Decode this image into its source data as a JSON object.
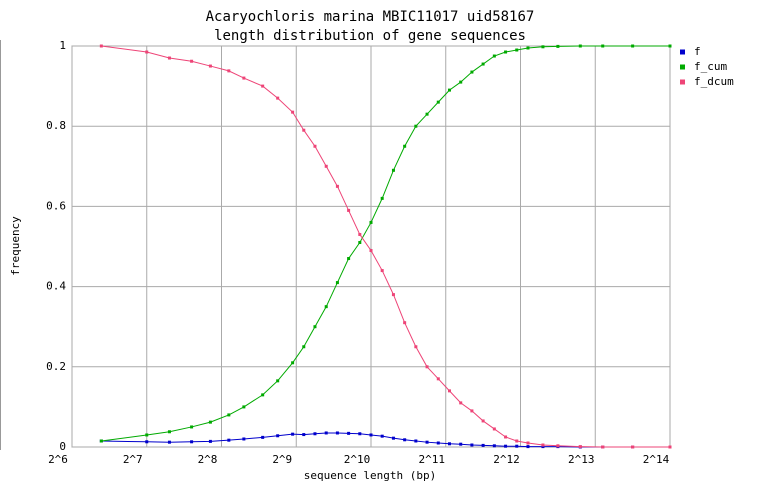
{
  "chart_data": {
    "type": "line",
    "title": "Acaryochloris marina MBIC11017 uid58167",
    "subtitle": "length distribution of gene sequences",
    "x_label": "sequence length (bp)",
    "y_label": "frequency",
    "log_x": true,
    "grid": true,
    "legend": "top-right",
    "xlim": [
      64,
      16384
    ],
    "xticks": [
      {
        "value": 64,
        "label": "2^6"
      },
      {
        "value": 128,
        "label": "2^7"
      },
      {
        "value": 256,
        "label": "2^8"
      },
      {
        "value": 512,
        "label": "2^9"
      },
      {
        "value": 1024,
        "label": "2^10"
      },
      {
        "value": 2048,
        "label": "2^11"
      },
      {
        "value": 4096,
        "label": "2^12"
      },
      {
        "value": 8192,
        "label": "2^13"
      },
      {
        "value": 16384,
        "label": "2^14"
      }
    ],
    "ylim": [
      0,
      1
    ],
    "yticks": [
      0,
      0.2,
      0.4,
      0.6,
      0.8,
      1
    ],
    "x": [
      84,
      128,
      158,
      194,
      231,
      274,
      315,
      375,
      431,
      495,
      549,
      609,
      676,
      750,
      832,
      923,
      1024,
      1136,
      1261,
      1399,
      1552,
      1722,
      1911,
      2120,
      2353,
      2610,
      2896,
      3214,
      3566,
      3956,
      4390,
      5043,
      5793,
      7132,
      8780,
      11585,
      16384
    ],
    "series": [
      {
        "name": "f",
        "color": "#0000cc",
        "values": [
          0.015,
          0.013,
          0.012,
          0.013,
          0.014,
          0.017,
          0.02,
          0.024,
          0.028,
          0.032,
          0.031,
          0.033,
          0.035,
          0.035,
          0.034,
          0.033,
          0.03,
          0.027,
          0.022,
          0.018,
          0.015,
          0.012,
          0.01,
          0.008,
          0.007,
          0.005,
          0.004,
          0.003,
          0.002,
          0.002,
          0.001,
          0.001,
          0.001,
          0,
          0,
          0,
          0
        ]
      },
      {
        "name": "f_cum",
        "color": "#00aa00",
        "values": [
          0.015,
          0.03,
          0.038,
          0.05,
          0.062,
          0.08,
          0.1,
          0.13,
          0.165,
          0.21,
          0.25,
          0.3,
          0.35,
          0.41,
          0.47,
          0.51,
          0.56,
          0.62,
          0.69,
          0.75,
          0.8,
          0.83,
          0.86,
          0.89,
          0.91,
          0.935,
          0.955,
          0.975,
          0.985,
          0.99,
          0.995,
          0.998,
          0.999,
          1,
          1,
          1,
          1
        ]
      },
      {
        "name": "f_dcum",
        "color": "#ee4477",
        "values": [
          1,
          0.985,
          0.97,
          0.962,
          0.95,
          0.938,
          0.92,
          0.9,
          0.87,
          0.835,
          0.79,
          0.75,
          0.7,
          0.65,
          0.59,
          0.53,
          0.49,
          0.44,
          0.38,
          0.31,
          0.25,
          0.2,
          0.17,
          0.14,
          0.11,
          0.09,
          0.065,
          0.045,
          0.025,
          0.015,
          0.01,
          0.005,
          0.003,
          0.001,
          0,
          0,
          0
        ]
      }
    ]
  }
}
